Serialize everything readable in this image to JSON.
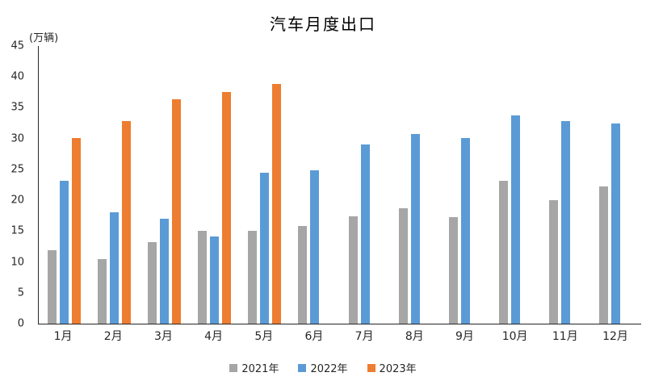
{
  "chart_data": {
    "type": "bar",
    "title": "汽车月度出口",
    "ylabel": "(万辆)",
    "xlabel": "",
    "categories": [
      "1月",
      "2月",
      "3月",
      "4月",
      "5月",
      "6月",
      "7月",
      "8月",
      "9月",
      "10月",
      "11月",
      "12月"
    ],
    "series": [
      {
        "name": "2021年",
        "color": "#A6A6A6",
        "values": [
          11.9,
          10.5,
          13.2,
          15.0,
          15.0,
          15.8,
          17.4,
          18.7,
          17.3,
          23.1,
          20.0,
          22.3
        ]
      },
      {
        "name": "2022年",
        "color": "#5B9BD5",
        "values": [
          23.1,
          18.0,
          17.0,
          14.1,
          24.5,
          24.9,
          29.0,
          30.8,
          30.1,
          33.7,
          32.9,
          32.4
        ]
      },
      {
        "name": "2023年",
        "color": "#ED7D31",
        "values": [
          30.1,
          32.9,
          36.4,
          37.6,
          38.9,
          null,
          null,
          null,
          null,
          null,
          null,
          null
        ]
      }
    ],
    "ylim": [
      0,
      45
    ],
    "yticks": [
      0,
      5,
      10,
      15,
      20,
      25,
      30,
      35,
      40,
      45
    ],
    "grid": false,
    "legend_position": "bottom",
    "axis_color": "#262626",
    "background": "#ffffff"
  }
}
